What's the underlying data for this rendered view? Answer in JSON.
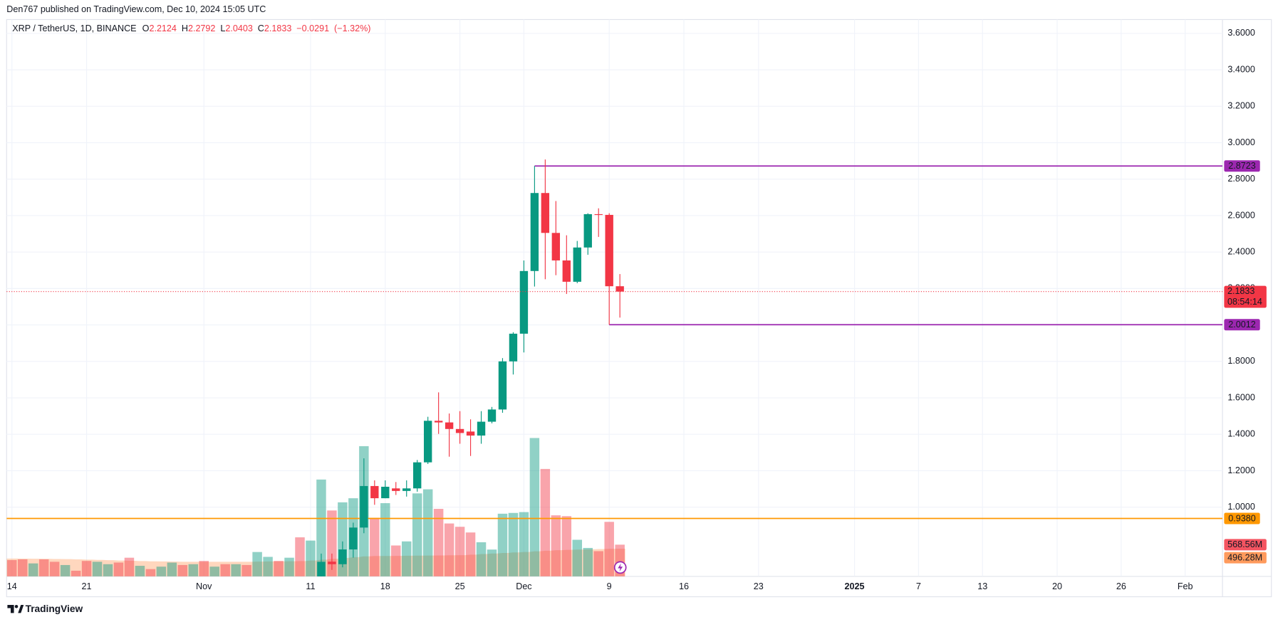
{
  "header": {
    "published": "Den767 published on TradingView.com, Dec 10, 2024 15:05 UTC"
  },
  "footer": {
    "brand": "TradingView"
  },
  "chart_data": {
    "type": "candlestick",
    "title": "XRP / TetherUS, 1D, BINANCE",
    "legend_labels": {
      "open": "O",
      "high": "H",
      "low": "L",
      "close": "C"
    },
    "change": {
      "value": -0.0291,
      "label": "−0.0291"
    },
    "change_percent": {
      "value": -1.32,
      "label": "(−1.32%)"
    },
    "countdown": "08:54:14",
    "up_color": "#089981",
    "down_color": "#f23645",
    "grid": true,
    "ylim": [
      0.62,
      3.676
    ],
    "yticks": [
      {
        "value": 1.0,
        "label": "1.0000"
      },
      {
        "value": 1.2,
        "label": "1.2000"
      },
      {
        "value": 1.4,
        "label": "1.4000"
      },
      {
        "value": 1.6,
        "label": "1.6000"
      },
      {
        "value": 1.8,
        "label": "1.8000"
      },
      {
        "value": 2.0,
        "label": "2.0000"
      },
      {
        "value": 2.2,
        "label": "2.2000"
      },
      {
        "value": 2.4,
        "label": "2.4000"
      },
      {
        "value": 2.6,
        "label": "2.6000"
      },
      {
        "value": 2.8,
        "label": "2.8000"
      },
      {
        "value": 3.0,
        "label": "3.0000"
      },
      {
        "value": 3.2,
        "label": "3.2000"
      },
      {
        "value": 3.4,
        "label": "3.4000"
      },
      {
        "value": 3.6,
        "label": "3.6000"
      }
    ],
    "categories": [
      "14",
      null,
      null,
      null,
      null,
      null,
      null,
      "21",
      null,
      null,
      null,
      null,
      null,
      null,
      null,
      null,
      null,
      null,
      "Nov",
      null,
      null,
      null,
      null,
      null,
      null,
      null,
      null,
      null,
      "11",
      null,
      null,
      null,
      null,
      null,
      null,
      "18",
      null,
      null,
      null,
      null,
      null,
      null,
      "25",
      null,
      null,
      null,
      null,
      null,
      "Dec",
      null,
      null,
      null,
      null,
      null,
      null,
      null,
      "9",
      null,
      null,
      null,
      null,
      null,
      null,
      "16",
      null,
      null,
      null,
      null,
      null,
      null,
      "23",
      null,
      null,
      null,
      null,
      null,
      null,
      null,
      null,
      "2025",
      null,
      null,
      null,
      null,
      null,
      "7",
      null,
      null,
      null,
      null,
      null,
      "13",
      null,
      null,
      null,
      null,
      null,
      null,
      "20",
      null,
      null,
      null,
      null,
      null,
      "26",
      null,
      null,
      null,
      null,
      null,
      "Feb",
      null,
      null,
      null
    ],
    "open": [
      null,
      null,
      null,
      null,
      null,
      null,
      null,
      null,
      null,
      null,
      null,
      null,
      null,
      null,
      null,
      null,
      null,
      null,
      null,
      null,
      null,
      null,
      null,
      null,
      null,
      null,
      null,
      null,
      null,
      0.6,
      0.701,
      0.687,
      0.768,
      0.888,
      1.116,
      1.049,
      1.103,
      1.089,
      1.103,
      1.246,
      1.474,
      1.465,
      1.429,
      1.415,
      1.393,
      1.469,
      1.536,
      1.8,
      1.952,
      2.296,
      2.724,
      2.505,
      2.354,
      2.237,
      2.425,
      2.608,
      2.604,
      2.2124,
      null,
      null,
      null,
      null,
      null,
      null,
      null,
      null,
      null,
      null,
      null,
      null,
      null,
      null,
      null,
      null,
      null,
      null,
      null,
      null,
      null,
      null,
      null,
      null,
      null,
      null,
      null,
      null,
      null,
      null,
      null,
      null,
      null,
      null,
      null,
      null,
      null,
      null,
      null,
      null,
      null,
      null,
      null,
      null,
      null,
      null,
      null,
      null,
      null,
      null,
      null,
      null,
      null,
      null,
      null,
      null
    ],
    "high": [
      null,
      null,
      null,
      null,
      null,
      null,
      null,
      null,
      null,
      null,
      null,
      null,
      null,
      null,
      null,
      null,
      null,
      null,
      null,
      null,
      null,
      null,
      null,
      null,
      null,
      null,
      null,
      null,
      null,
      0.745,
      0.745,
      0.812,
      0.915,
      1.268,
      1.147,
      1.147,
      1.138,
      1.147,
      1.259,
      1.496,
      1.63,
      1.514,
      1.527,
      1.482,
      1.527,
      1.55,
      1.818,
      1.96,
      2.354,
      2.8723,
      2.908,
      2.68,
      2.492,
      2.461,
      2.613,
      2.64,
      2.613,
      2.2792,
      null,
      null,
      null,
      null,
      null,
      null,
      null,
      null,
      null,
      null,
      null,
      null,
      null,
      null,
      null,
      null,
      null,
      null,
      null,
      null,
      null,
      null,
      null,
      null,
      null,
      null,
      null,
      null,
      null,
      null,
      null,
      null,
      null,
      null,
      null,
      null,
      null,
      null,
      null,
      null,
      null,
      null,
      null,
      null,
      null,
      null,
      null,
      null,
      null,
      null,
      null,
      null,
      null,
      null,
      null,
      null
    ],
    "low": [
      null,
      null,
      null,
      null,
      null,
      null,
      null,
      null,
      null,
      null,
      null,
      null,
      null,
      null,
      null,
      null,
      null,
      null,
      null,
      null,
      null,
      null,
      null,
      null,
      null,
      null,
      null,
      null,
      null,
      0.58,
      0.656,
      0.67,
      0.723,
      0.857,
      1.013,
      1.049,
      1.067,
      1.058,
      1.085,
      1.237,
      1.402,
      1.277,
      1.348,
      1.281,
      1.348,
      1.46,
      1.518,
      1.728,
      1.849,
      2.211,
      2.251,
      2.273,
      2.17,
      2.229,
      2.385,
      2.483,
      2.0012,
      2.0403,
      null,
      null,
      null,
      null,
      null,
      null,
      null,
      null,
      null,
      null,
      null,
      null,
      null,
      null,
      null,
      null,
      null,
      null,
      null,
      null,
      null,
      null,
      null,
      null,
      null,
      null,
      null,
      null,
      null,
      null,
      null,
      null,
      null,
      null,
      null,
      null,
      null,
      null,
      null,
      null,
      null,
      null,
      null,
      null,
      null,
      null,
      null,
      null,
      null,
      null,
      null,
      null,
      null,
      null,
      null,
      null
    ],
    "close": [
      null,
      null,
      null,
      null,
      null,
      null,
      null,
      null,
      null,
      null,
      null,
      null,
      null,
      null,
      null,
      null,
      null,
      null,
      null,
      null,
      null,
      null,
      null,
      null,
      null,
      null,
      null,
      null,
      null,
      0.7,
      0.687,
      0.768,
      0.888,
      1.116,
      1.049,
      1.112,
      1.089,
      1.103,
      1.246,
      1.474,
      1.465,
      1.429,
      1.407,
      1.393,
      1.469,
      1.536,
      1.8,
      1.952,
      2.296,
      2.724,
      2.505,
      2.354,
      2.237,
      2.425,
      2.608,
      2.604,
      2.2124,
      2.1833,
      null,
      null,
      null,
      null,
      null,
      null,
      null,
      null,
      null,
      null,
      null,
      null,
      null,
      null,
      null,
      null,
      null,
      null,
      null,
      null,
      null,
      null,
      null,
      null,
      null,
      null,
      null,
      null,
      null,
      null,
      null,
      null,
      null,
      null,
      null,
      null,
      null,
      null,
      null,
      null,
      null,
      null,
      null,
      null,
      null,
      null,
      null,
      null,
      null,
      null,
      null,
      null,
      null,
      null,
      null,
      null
    ],
    "volume": [
      292,
      306,
      233,
      306,
      262,
      204,
      102,
      277,
      262,
      219,
      248,
      335,
      190,
      131,
      175,
      248,
      204,
      219,
      277,
      175,
      219,
      219,
      204,
      437,
      350,
      277,
      335,
      700,
      642,
      1735,
      1181,
      1327,
      1400,
      2333,
      1050,
      1312,
      554,
      627,
      1487,
      1560,
      1210,
      948,
      889,
      787,
      612,
      481,
      1123,
      1137,
      1152,
      2479,
      1925,
      1094,
      1079,
      656,
      510,
      452,
      977,
      568.56,
      null,
      null,
      null,
      null,
      null,
      null,
      null,
      null,
      null,
      null,
      null,
      null,
      null,
      null,
      null,
      null,
      null,
      null,
      null,
      null,
      null,
      null,
      null,
      null,
      null,
      null,
      null,
      null,
      null,
      null,
      null,
      null,
      null,
      null,
      null,
      null,
      null,
      null,
      null,
      null,
      null,
      null,
      null,
      null,
      null,
      null,
      null,
      null,
      null,
      null,
      null,
      null,
      null,
      null,
      null,
      null
    ],
    "volume_direction": [
      "down",
      "down",
      "up",
      "down",
      "down",
      "up",
      "down",
      "down",
      "up",
      "up",
      "down",
      "down",
      "up",
      "down",
      "up",
      "up",
      "down",
      "up",
      "down",
      "up",
      "down",
      "up",
      "down",
      "up",
      "up",
      "down",
      "up",
      "down",
      "up",
      "up",
      "down",
      "up",
      "up",
      "up",
      "down",
      "up",
      "down",
      "up",
      "up",
      "up",
      "down",
      "down",
      "down",
      "down",
      "up",
      "up",
      "up",
      "up",
      "up",
      "up",
      "down",
      "down",
      "down",
      "up",
      "up",
      "down",
      "down",
      "down",
      null,
      null,
      null,
      null,
      null,
      null,
      null,
      null,
      null,
      null,
      null,
      null,
      null,
      null,
      null,
      null,
      null,
      null,
      null,
      null,
      null,
      null,
      null,
      null,
      null,
      null,
      null,
      null,
      null,
      null,
      null,
      null,
      null,
      null,
      null,
      null,
      null,
      null,
      null,
      null,
      null,
      null,
      null,
      null,
      null,
      null,
      null,
      null,
      null,
      null,
      null,
      null,
      null,
      null,
      null,
      null
    ],
    "volume_ma": [
      320,
      318,
      316,
      314,
      312,
      310,
      305,
      300,
      295,
      290,
      285,
      280,
      275,
      270,
      268,
      265,
      262,
      262,
      262,
      262,
      262,
      262,
      262,
      265,
      268,
      270,
      272,
      275,
      285,
      300,
      315,
      330,
      345,
      360,
      365,
      365,
      368,
      370,
      372,
      374,
      376,
      378,
      380,
      390,
      400,
      410,
      420,
      430,
      437,
      450,
      460,
      470,
      475,
      480,
      485,
      490,
      494,
      496.28,
      null,
      null,
      null,
      null,
      null,
      null,
      null,
      null,
      null,
      null,
      null,
      null,
      null,
      null,
      null,
      null,
      null,
      null,
      null,
      null,
      null,
      null,
      null,
      null,
      null,
      null,
      null,
      null,
      null,
      null,
      null,
      null,
      null,
      null,
      null,
      null,
      null,
      null,
      null,
      null,
      null,
      null,
      null,
      null,
      null,
      null,
      null,
      null,
      null,
      null,
      null,
      null,
      null,
      null,
      null,
      null
    ],
    "volume_ma_color": "#ff9a5c",
    "volume_last_label": "568.56M",
    "volume_ma_last_label": "496.28M",
    "price_lines": [
      {
        "value": 2.8723,
        "label": "2.8723",
        "color": "#9c27b0"
      },
      {
        "value": 2.0012,
        "label": "2.0012",
        "color": "#9c27b0"
      },
      {
        "value": 0.938,
        "label": "0.9380",
        "color": "#ff9800"
      }
    ]
  }
}
